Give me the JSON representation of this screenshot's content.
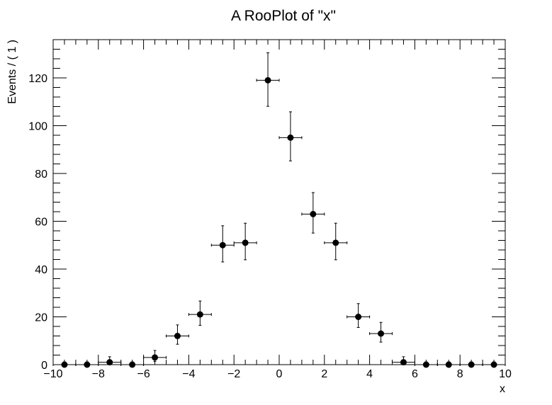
{
  "chart_data": {
    "type": "scatter",
    "title": "A RooPlot of \"x\"",
    "xlabel": "x",
    "ylabel": "Events / ( 1 )",
    "xlim": [
      -10,
      10
    ],
    "ylim": [
      0,
      136
    ],
    "xticks": [
      -10,
      -8,
      -6,
      -4,
      -2,
      0,
      2,
      4,
      6,
      8,
      10
    ],
    "xtick_labels": [
      "−10",
      "−8",
      "−6",
      "−4",
      "−2",
      "0",
      "2",
      "4",
      "6",
      "8",
      "10"
    ],
    "yticks": [
      0,
      20,
      40,
      60,
      80,
      100,
      120
    ],
    "ytick_labels": [
      "0",
      "20",
      "40",
      "60",
      "80",
      "100",
      "120"
    ],
    "grid": false,
    "marker_color": "#000000",
    "series": [
      {
        "x": [
          -9.5,
          -8.5,
          -7.5,
          -6.5,
          -5.5,
          -4.5,
          -3.5,
          -2.5,
          -1.5,
          -0.5,
          0.5,
          1.5,
          2.5,
          3.5,
          4.5,
          5.5,
          6.5,
          7.5,
          8.5,
          9.5
        ],
        "values": [
          0,
          0,
          1,
          0,
          3,
          12,
          21,
          50,
          51,
          119,
          95,
          63,
          51,
          20,
          13,
          1,
          0,
          0,
          0,
          0
        ],
        "xerr": 0.5,
        "yerr_low": [
          0,
          0,
          0.83,
          0,
          1.63,
          3.46,
          4.55,
          7.04,
          7.12,
          10.9,
          9.74,
          7.93,
          7.12,
          4.44,
          3.56,
          0.83,
          0,
          0,
          0,
          0
        ],
        "yerr_high": [
          1.15,
          1.15,
          2.3,
          1.15,
          2.92,
          4.62,
          5.63,
          8.12,
          8.19,
          11.5,
          10.8,
          9.0,
          8.2,
          5.55,
          4.7,
          2.3,
          1.15,
          1.15,
          1.15,
          1.15
        ]
      }
    ]
  }
}
